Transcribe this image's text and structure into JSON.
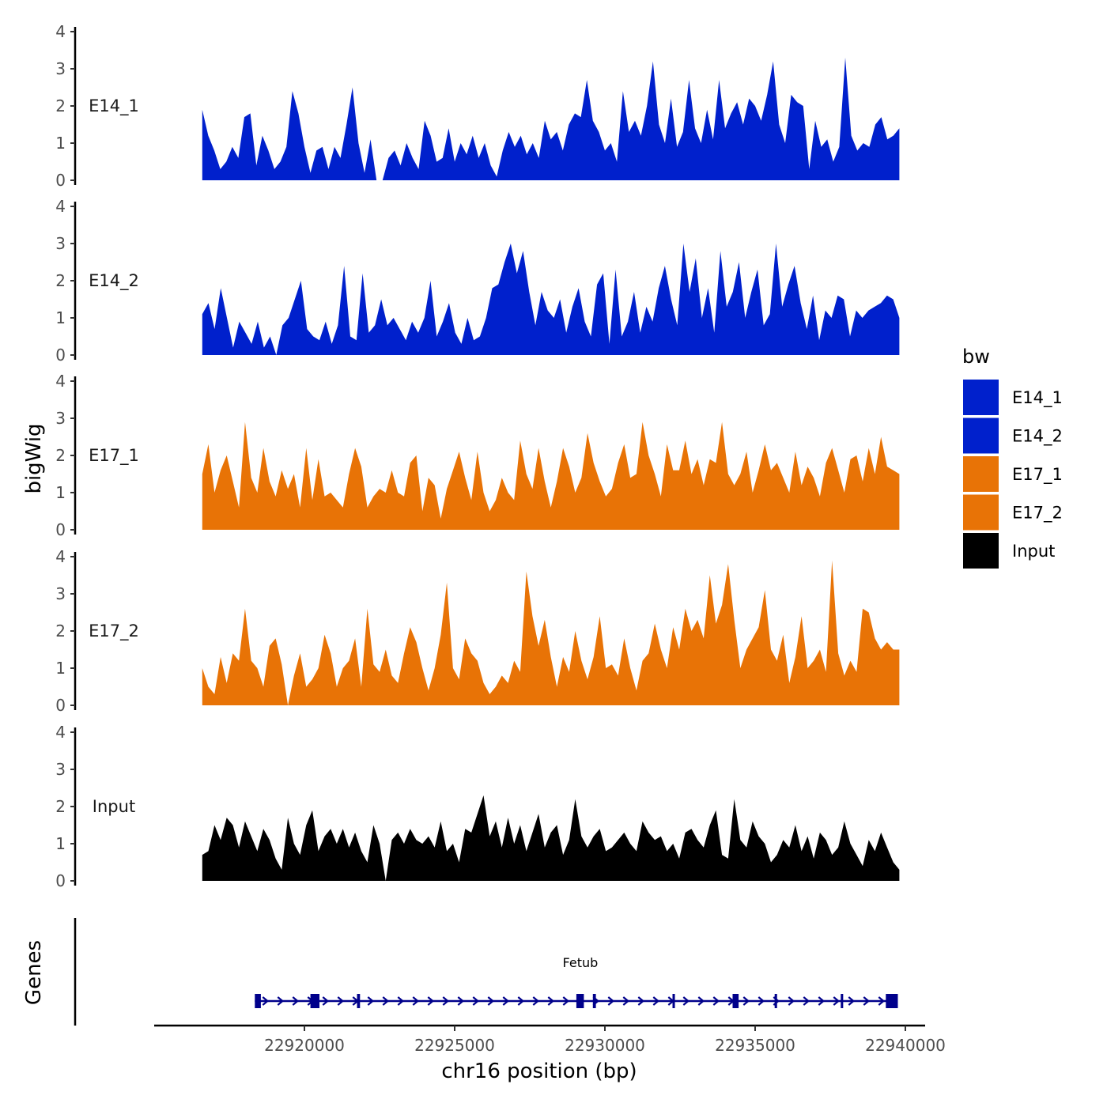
{
  "chart_data": {
    "type": "area",
    "ylabel": "bigWig",
    "xlabel": "chr16 position (bp)",
    "ylim": [
      0,
      4
    ],
    "y_ticks": [
      "0",
      "1",
      "2",
      "3",
      "4"
    ],
    "xlim": [
      22915800,
      22940000
    ],
    "x_ticks": [
      {
        "value": 22920000,
        "label": "22920000"
      },
      {
        "value": 22925000,
        "label": "22925000"
      },
      {
        "value": 22930000,
        "label": "22930000"
      },
      {
        "value": 22935000,
        "label": "22935000"
      },
      {
        "value": 22940000,
        "label": "22940000"
      }
    ],
    "genes_label": "Genes",
    "legend": {
      "title": "bw",
      "entries": [
        {
          "label": "E14_1",
          "color": "#0020CC"
        },
        {
          "label": "E14_2",
          "color": "#0020CC"
        },
        {
          "label": "E17_1",
          "color": "#E87306"
        },
        {
          "label": "E17_2",
          "color": "#E87306"
        },
        {
          "label": "Input",
          "color": "#000000"
        }
      ]
    },
    "series": [
      {
        "name": "E14_1",
        "color": "#0020CC",
        "x_start": 22916600,
        "x_end": 22939800,
        "values": [
          1.9,
          1.2,
          0.8,
          0.3,
          0.5,
          0.9,
          0.6,
          1.7,
          1.8,
          0.4,
          1.2,
          0.8,
          0.3,
          0.5,
          0.9,
          2.4,
          1.8,
          0.9,
          0.2,
          0.8,
          0.9,
          0.3,
          0.9,
          0.6,
          1.5,
          2.5,
          1.0,
          0.2,
          1.1,
          0.0,
          0.0,
          0.6,
          0.8,
          0.4,
          1.0,
          0.6,
          0.3,
          1.6,
          1.2,
          0.5,
          0.6,
          1.4,
          0.5,
          1.0,
          0.7,
          1.2,
          0.6,
          1.0,
          0.4,
          0.1,
          0.8,
          1.3,
          0.9,
          1.2,
          0.7,
          1.0,
          0.6,
          1.6,
          1.1,
          1.3,
          0.8,
          1.5,
          1.8,
          1.7,
          2.7,
          1.6,
          1.3,
          0.8,
          1.0,
          0.5,
          2.4,
          1.3,
          1.6,
          1.2,
          2.0,
          3.2,
          1.5,
          1.0,
          2.2,
          0.9,
          1.3,
          2.7,
          1.4,
          1.0,
          1.9,
          1.1,
          2.7,
          1.4,
          1.8,
          2.1,
          1.5,
          2.2,
          2.0,
          1.6,
          2.3,
          3.2,
          1.5,
          1.0,
          2.3,
          2.1,
          2.0,
          0.3,
          1.6,
          0.9,
          1.1,
          0.5,
          0.9,
          3.3,
          1.2,
          0.8,
          1.0,
          0.9,
          1.5,
          1.7,
          1.1,
          1.2,
          1.4
        ]
      },
      {
        "name": "E14_2",
        "color": "#0020CC",
        "x_start": 22916600,
        "x_end": 22939800,
        "values": [
          1.1,
          1.4,
          0.7,
          1.8,
          1.0,
          0.2,
          0.9,
          0.6,
          0.3,
          0.9,
          0.2,
          0.5,
          0.0,
          0.8,
          1.0,
          1.5,
          2.0,
          0.7,
          0.5,
          0.4,
          0.9,
          0.3,
          0.8,
          2.4,
          0.5,
          0.4,
          2.2,
          0.6,
          0.8,
          1.5,
          0.8,
          1.0,
          0.7,
          0.4,
          0.9,
          0.6,
          1.0,
          2.0,
          0.5,
          0.9,
          1.4,
          0.6,
          0.3,
          1.0,
          0.4,
          0.5,
          1.0,
          1.8,
          1.9,
          2.5,
          3.0,
          2.2,
          2.8,
          1.7,
          0.8,
          1.7,
          1.2,
          1.0,
          1.5,
          0.6,
          1.3,
          1.8,
          0.9,
          0.5,
          1.9,
          2.2,
          0.3,
          2.3,
          0.5,
          0.9,
          1.7,
          0.6,
          1.3,
          0.9,
          1.8,
          2.4,
          1.5,
          0.8,
          3.0,
          1.7,
          2.6,
          1.0,
          1.8,
          0.6,
          2.8,
          1.3,
          1.7,
          2.5,
          1.0,
          1.7,
          2.3,
          0.8,
          1.1,
          3.0,
          1.3,
          1.9,
          2.4,
          1.4,
          0.7,
          1.6,
          0.4,
          1.2,
          1.0,
          1.6,
          1.5,
          0.5,
          1.2,
          1.0,
          1.2,
          1.3,
          1.4,
          1.6,
          1.5,
          1.0
        ]
      },
      {
        "name": "E17_1",
        "color": "#E87306",
        "x_start": 22916600,
        "x_end": 22939800,
        "values": [
          1.5,
          2.3,
          1.0,
          1.6,
          2.0,
          1.3,
          0.6,
          2.9,
          1.4,
          1.0,
          2.2,
          1.3,
          0.9,
          1.6,
          1.1,
          1.5,
          0.6,
          2.2,
          0.8,
          1.9,
          0.9,
          1.0,
          0.8,
          0.6,
          1.5,
          2.2,
          1.7,
          0.6,
          0.9,
          1.1,
          1.0,
          1.6,
          1.0,
          0.9,
          1.8,
          2.0,
          0.5,
          1.4,
          1.2,
          0.3,
          1.1,
          1.6,
          2.1,
          1.4,
          0.8,
          2.1,
          1.0,
          0.5,
          0.8,
          1.4,
          1.0,
          0.8,
          2.4,
          1.5,
          1.1,
          2.2,
          1.3,
          0.6,
          1.3,
          2.2,
          1.7,
          1.0,
          1.4,
          2.6,
          1.8,
          1.3,
          0.9,
          1.1,
          1.8,
          2.3,
          1.4,
          1.5,
          2.9,
          2.0,
          1.5,
          0.9,
          2.3,
          1.6,
          1.6,
          2.4,
          1.5,
          1.9,
          1.2,
          1.9,
          1.8,
          2.9,
          1.5,
          1.2,
          1.5,
          2.1,
          1.0,
          1.6,
          2.3,
          1.6,
          1.8,
          1.4,
          1.0,
          2.1,
          1.2,
          1.7,
          1.4,
          0.9,
          1.8,
          2.2,
          1.6,
          1.0,
          1.9,
          2.0,
          1.3,
          2.2,
          1.5,
          2.5,
          1.7,
          1.6,
          1.5
        ]
      },
      {
        "name": "E17_2",
        "color": "#E87306",
        "x_start": 22916600,
        "x_end": 22939800,
        "values": [
          1.0,
          0.5,
          0.3,
          1.3,
          0.6,
          1.4,
          1.2,
          2.6,
          1.2,
          1.0,
          0.5,
          1.6,
          1.8,
          1.1,
          0.0,
          0.8,
          1.4,
          0.5,
          0.7,
          1.0,
          1.9,
          1.4,
          0.5,
          1.0,
          1.2,
          1.8,
          0.5,
          2.6,
          1.1,
          0.9,
          1.5,
          0.8,
          0.6,
          1.4,
          2.1,
          1.7,
          1.0,
          0.4,
          1.0,
          1.9,
          3.3,
          1.0,
          0.7,
          1.8,
          1.4,
          1.2,
          0.6,
          0.3,
          0.5,
          0.8,
          0.6,
          1.2,
          0.9,
          3.6,
          2.4,
          1.6,
          2.3,
          1.3,
          0.5,
          1.3,
          0.9,
          2.0,
          1.2,
          0.7,
          1.3,
          2.4,
          1.0,
          1.1,
          0.8,
          1.8,
          1.0,
          0.4,
          1.2,
          1.4,
          2.2,
          1.5,
          1.0,
          2.1,
          1.5,
          2.6,
          2.0,
          2.3,
          1.8,
          3.5,
          2.2,
          2.7,
          3.8,
          2.3,
          1.0,
          1.5,
          1.8,
          2.1,
          3.1,
          1.5,
          1.2,
          1.9,
          0.6,
          1.3,
          2.4,
          1.0,
          1.2,
          1.5,
          0.9,
          3.9,
          1.4,
          0.8,
          1.2,
          0.9,
          2.6,
          2.5,
          1.8,
          1.5,
          1.7,
          1.5,
          1.5
        ]
      },
      {
        "name": "Input",
        "color": "#000000",
        "x_start": 22916600,
        "x_end": 22939800,
        "values": [
          0.7,
          0.8,
          1.5,
          1.1,
          1.7,
          1.5,
          0.9,
          1.6,
          1.2,
          0.8,
          1.4,
          1.1,
          0.6,
          0.3,
          1.7,
          1.0,
          0.7,
          1.5,
          1.9,
          0.8,
          1.2,
          1.4,
          1.0,
          1.4,
          0.9,
          1.3,
          0.8,
          0.5,
          1.5,
          1.0,
          0.0,
          1.1,
          1.3,
          1.0,
          1.4,
          1.1,
          1.0,
          1.2,
          0.9,
          1.6,
          0.8,
          1.0,
          0.5,
          1.4,
          1.3,
          1.8,
          2.3,
          1.2,
          1.6,
          0.9,
          1.7,
          1.0,
          1.5,
          0.8,
          1.3,
          1.8,
          0.9,
          1.3,
          1.5,
          0.7,
          1.1,
          2.2,
          1.2,
          0.9,
          1.2,
          1.4,
          0.8,
          0.9,
          1.1,
          1.3,
          1.0,
          0.8,
          1.6,
          1.3,
          1.1,
          1.2,
          0.8,
          1.0,
          0.6,
          1.3,
          1.4,
          1.1,
          0.9,
          1.5,
          1.9,
          0.7,
          0.6,
          2.2,
          1.1,
          0.9,
          1.6,
          1.2,
          1.0,
          0.5,
          0.7,
          1.1,
          0.9,
          1.5,
          0.8,
          1.2,
          0.6,
          1.3,
          1.1,
          0.7,
          0.9,
          1.6,
          1.0,
          0.7,
          0.4,
          1.1,
          0.8,
          1.3,
          0.9,
          0.5,
          0.3
        ]
      }
    ],
    "gene": {
      "name": "Fetub",
      "start": 22918350,
      "end": 22939750,
      "strand": "+",
      "color": "#00008B",
      "exons": [
        {
          "start": 22918350,
          "end": 22918550
        },
        {
          "start": 22920200,
          "end": 22920500
        },
        {
          "start": 22921750,
          "end": 22921850
        },
        {
          "start": 22929050,
          "end": 22929300
        },
        {
          "start": 22929600,
          "end": 22929700
        },
        {
          "start": 22932250,
          "end": 22932330
        },
        {
          "start": 22934250,
          "end": 22934450
        },
        {
          "start": 22935650,
          "end": 22935730
        },
        {
          "start": 22937850,
          "end": 22937930
        },
        {
          "start": 22939350,
          "end": 22939750
        }
      ]
    }
  }
}
